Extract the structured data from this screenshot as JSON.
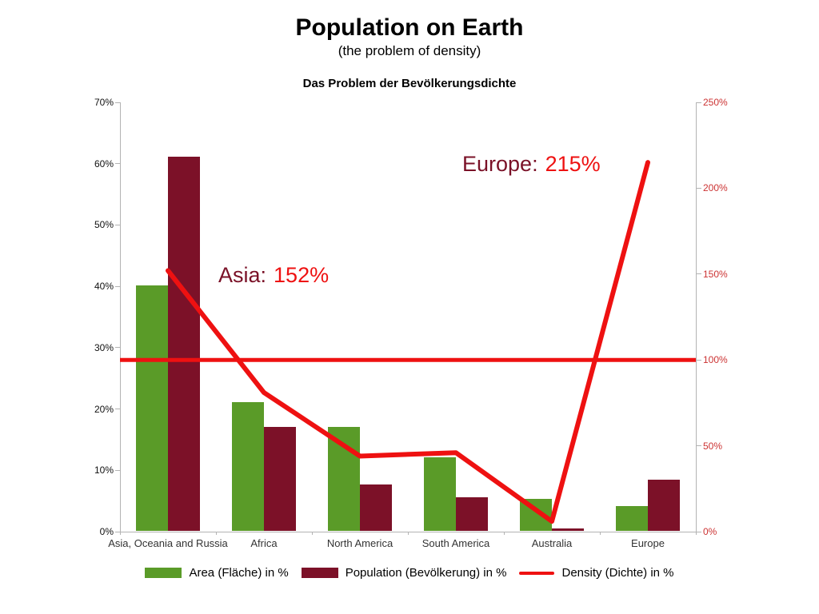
{
  "chart_data": {
    "type": "bar+line",
    "title": "Population on Earth",
    "subtitle": "(the problem of density)",
    "subtitle_de": "Das Problem der Bevölkerungsdichte",
    "categories": [
      "Asia, Oceania and Russia",
      "Africa",
      "North America",
      "South America",
      "Australia",
      "Europe"
    ],
    "series": [
      {
        "name": "Area (Fläche) in %",
        "type": "bar",
        "axis": "left",
        "color": "#5a9b28",
        "values": [
          40,
          21,
          17,
          12,
          5.2,
          4
        ]
      },
      {
        "name": "Population (Bevölkerung) in %",
        "type": "bar",
        "axis": "left",
        "color": "#7c1128",
        "values": [
          61,
          17,
          7.5,
          5.5,
          0.4,
          8.3
        ]
      },
      {
        "name": "Density (Dichte) in %",
        "type": "line",
        "axis": "right",
        "color": "#ee1111",
        "values": [
          152,
          81,
          44,
          46,
          6,
          215
        ]
      }
    ],
    "reference_line": {
      "axis": "right",
      "value": 100,
      "color": "#ee1111"
    },
    "left_axis": {
      "min": 0,
      "max": 70,
      "step": 10,
      "color": "#111111",
      "tick_labels": [
        "0%",
        "10%",
        "20%",
        "30%",
        "40%",
        "50%",
        "60%",
        "70%"
      ]
    },
    "right_axis": {
      "min": 0,
      "max": 250,
      "step": 50,
      "color": "#cc3333",
      "tick_labels": [
        "0%",
        "50%",
        "100%",
        "150%",
        "200%",
        "250%"
      ]
    },
    "annotations": [
      {
        "label": "Asia:",
        "value": "152%",
        "label_color": "#7a1127",
        "value_color": "#ee1111"
      },
      {
        "label": "Europe:",
        "value": "215%",
        "label_color": "#7a1127",
        "value_color": "#ee1111"
      }
    ],
    "legend": {
      "position": "bottom",
      "items": [
        "Area (Fläche) in %",
        "Population (Bevölkerung) in %",
        "Density (Dichte) in %"
      ]
    },
    "grid": false
  }
}
